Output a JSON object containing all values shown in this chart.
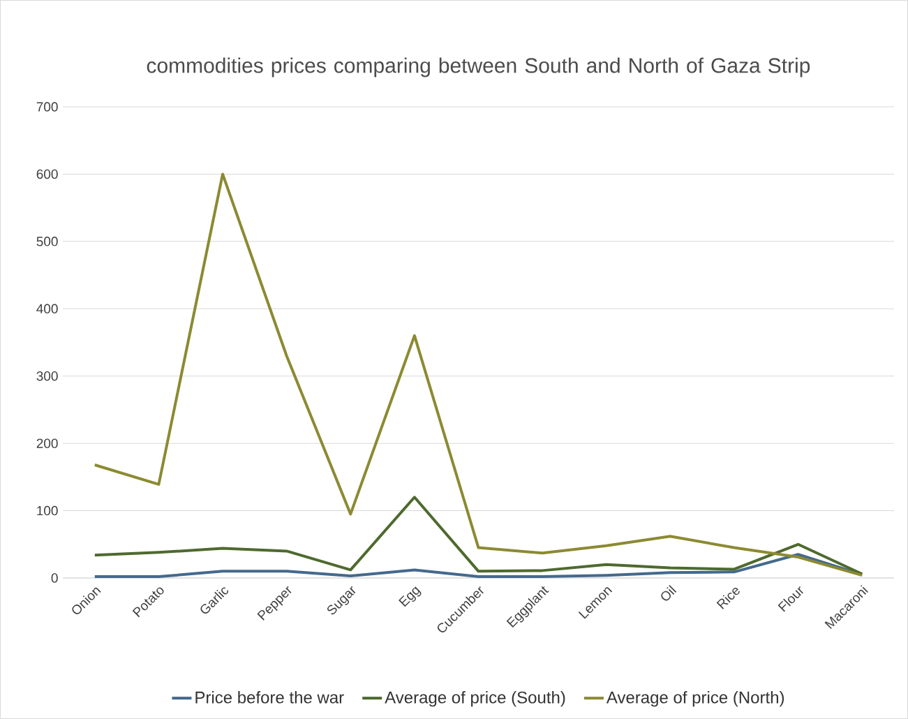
{
  "chart_data": {
    "type": "line",
    "title": "commodities prices comparing between South and North of Gaza Strip",
    "categories": [
      "Onion",
      "Potato",
      "Garlic",
      "Pepper",
      "Sugar",
      "Egg",
      "Cucumber",
      "Eggplant",
      "Lemon",
      "Oil",
      "Rice",
      "Flour",
      "Macaroni"
    ],
    "series": [
      {
        "name": "Price before the war",
        "color": "#44698d",
        "values": [
          2,
          2,
          10,
          10,
          3,
          12,
          2,
          2,
          4,
          8,
          9,
          35,
          5
        ]
      },
      {
        "name": "Average of price (South)",
        "color": "#4e6a2e",
        "values": [
          34,
          38,
          44,
          40,
          12,
          120,
          10,
          11,
          20,
          15,
          13,
          50,
          6
        ]
      },
      {
        "name": "Average of price (North)",
        "color": "#8c8a32",
        "values": [
          168,
          139,
          600,
          330,
          95,
          360,
          45,
          37,
          48,
          62,
          45,
          31,
          4
        ]
      }
    ],
    "ylim": [
      0,
      700
    ],
    "yticks": [
      0,
      100,
      200,
      300,
      400,
      500,
      600,
      700
    ],
    "grid": "y",
    "legend": "bottom",
    "marker": "none",
    "line_style": "solid"
  }
}
